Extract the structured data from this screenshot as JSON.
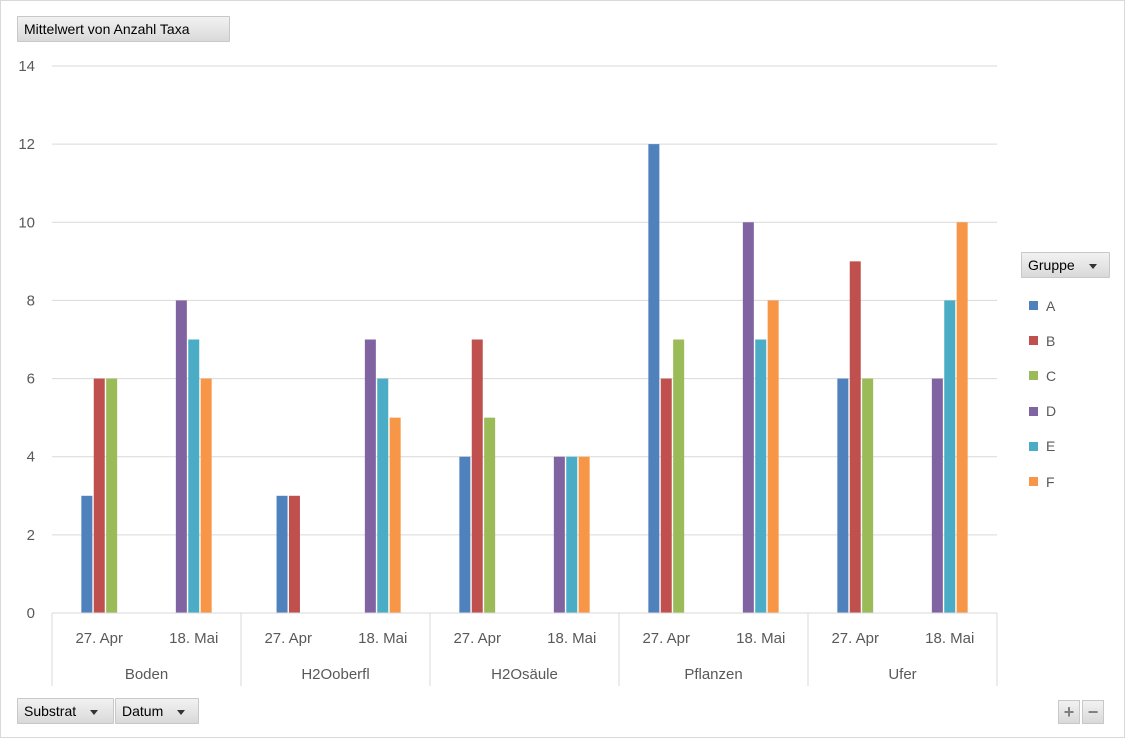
{
  "value_field_label": "Mittelwert von Anzahl Taxa",
  "legend_field_label": "Gruppe",
  "axis_fields": [
    "Substrat",
    "Datum"
  ],
  "zoom": {
    "plus": "+",
    "minus": "−"
  },
  "chart_data": {
    "type": "bar",
    "ylim": [
      0,
      14
    ],
    "yticks": [
      0,
      2,
      4,
      6,
      8,
      10,
      12,
      14
    ],
    "grid": true,
    "legend_position": "right",
    "groups": [
      {
        "label": "Boden",
        "subcategories": [
          "27. Apr",
          "18. Mai"
        ]
      },
      {
        "label": "H2Ooberfl",
        "subcategories": [
          "27. Apr",
          "18. Mai"
        ]
      },
      {
        "label": "H2Osäule",
        "subcategories": [
          "27. Apr",
          "18. Mai"
        ]
      },
      {
        "label": "Pflanzen",
        "subcategories": [
          "27. Apr",
          "18. Mai"
        ]
      },
      {
        "label": "Ufer",
        "subcategories": [
          "27. Apr",
          "18. Mai"
        ]
      }
    ],
    "categories": [
      "Boden | 27. Apr",
      "Boden | 18. Mai",
      "H2Ooberfl | 27. Apr",
      "H2Ooberfl | 18. Mai",
      "H2Osäule | 27. Apr",
      "H2Osäule | 18. Mai",
      "Pflanzen | 27. Apr",
      "Pflanzen | 18. Mai",
      "Ufer | 27. Apr",
      "Ufer | 18. Mai"
    ],
    "series": [
      {
        "name": "A",
        "color": "#4f81bd",
        "values": [
          3,
          null,
          3,
          null,
          4,
          null,
          12,
          null,
          6,
          null
        ]
      },
      {
        "name": "B",
        "color": "#c0504d",
        "values": [
          6,
          null,
          3,
          null,
          7,
          null,
          6,
          null,
          9,
          null
        ]
      },
      {
        "name": "C",
        "color": "#9bbb59",
        "values": [
          6,
          null,
          null,
          null,
          5,
          null,
          7,
          null,
          6,
          null
        ]
      },
      {
        "name": "D",
        "color": "#8064a2",
        "values": [
          null,
          8,
          null,
          7,
          null,
          4,
          null,
          10,
          null,
          6
        ]
      },
      {
        "name": "E",
        "color": "#4bacc6",
        "values": [
          null,
          7,
          null,
          6,
          null,
          4,
          null,
          7,
          null,
          8
        ]
      },
      {
        "name": "F",
        "color": "#f79646",
        "values": [
          null,
          6,
          null,
          5,
          null,
          4,
          null,
          8,
          null,
          10
        ]
      }
    ]
  }
}
